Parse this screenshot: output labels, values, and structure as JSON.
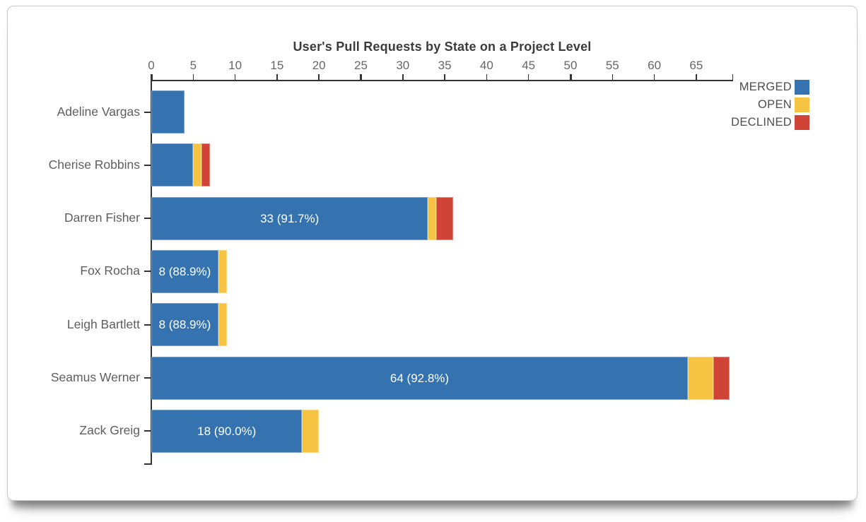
{
  "window": {
    "background": "#ffffff",
    "border_color": "#c9c9c9"
  },
  "colors": {
    "merged": "#3572b0",
    "open": "#f6c343",
    "declined": "#d04437",
    "axis": "#333333",
    "tick_label": "#666666",
    "category_label": "#5e5e5e",
    "title": "#3b3b3b",
    "bar_label_text": "#ffffff"
  },
  "chart_data": {
    "type": "bar",
    "orientation": "horizontal",
    "stacked": true,
    "title": "User's Pull Requests by State on a Project Level",
    "xlabel": "",
    "ylabel": "",
    "categories": [
      "Adeline Vargas",
      "Cherise Robbins",
      "Darren Fisher",
      "Fox Rocha",
      "Leigh Bartlett",
      "Seamus Werner",
      "Zack Greig"
    ],
    "series": [
      {
        "name": "MERGED",
        "color": "#3572b0",
        "values": [
          4,
          5,
          33,
          8,
          8,
          64,
          18
        ]
      },
      {
        "name": "OPEN",
        "color": "#f6c343",
        "values": [
          0,
          1,
          1,
          1,
          1,
          3,
          2
        ]
      },
      {
        "name": "DECLINED",
        "color": "#d04437",
        "values": [
          0,
          1,
          2,
          0,
          0,
          2,
          0
        ]
      }
    ],
    "totals": [
      4,
      7,
      36,
      9,
      9,
      69,
      20
    ],
    "bar_labels": [
      "",
      "",
      "33 (91.7%)",
      "8 (88.9%)",
      "8 (88.9%)",
      "64 (92.8%)",
      "18 (90.0%)"
    ],
    "x_ticks": [
      0,
      5,
      10,
      15,
      20,
      25,
      30,
      35,
      40,
      45,
      50,
      55,
      60,
      65
    ],
    "x_major_ticks": [
      0,
      25,
      50
    ],
    "xlim": [
      0,
      69.4
    ],
    "grid": false,
    "legend_position": "top-right"
  },
  "legend": {
    "items": [
      {
        "label": "MERGED",
        "color": "#3572b0"
      },
      {
        "label": "OPEN",
        "color": "#f6c343"
      },
      {
        "label": "DECLINED",
        "color": "#d04437"
      }
    ]
  }
}
